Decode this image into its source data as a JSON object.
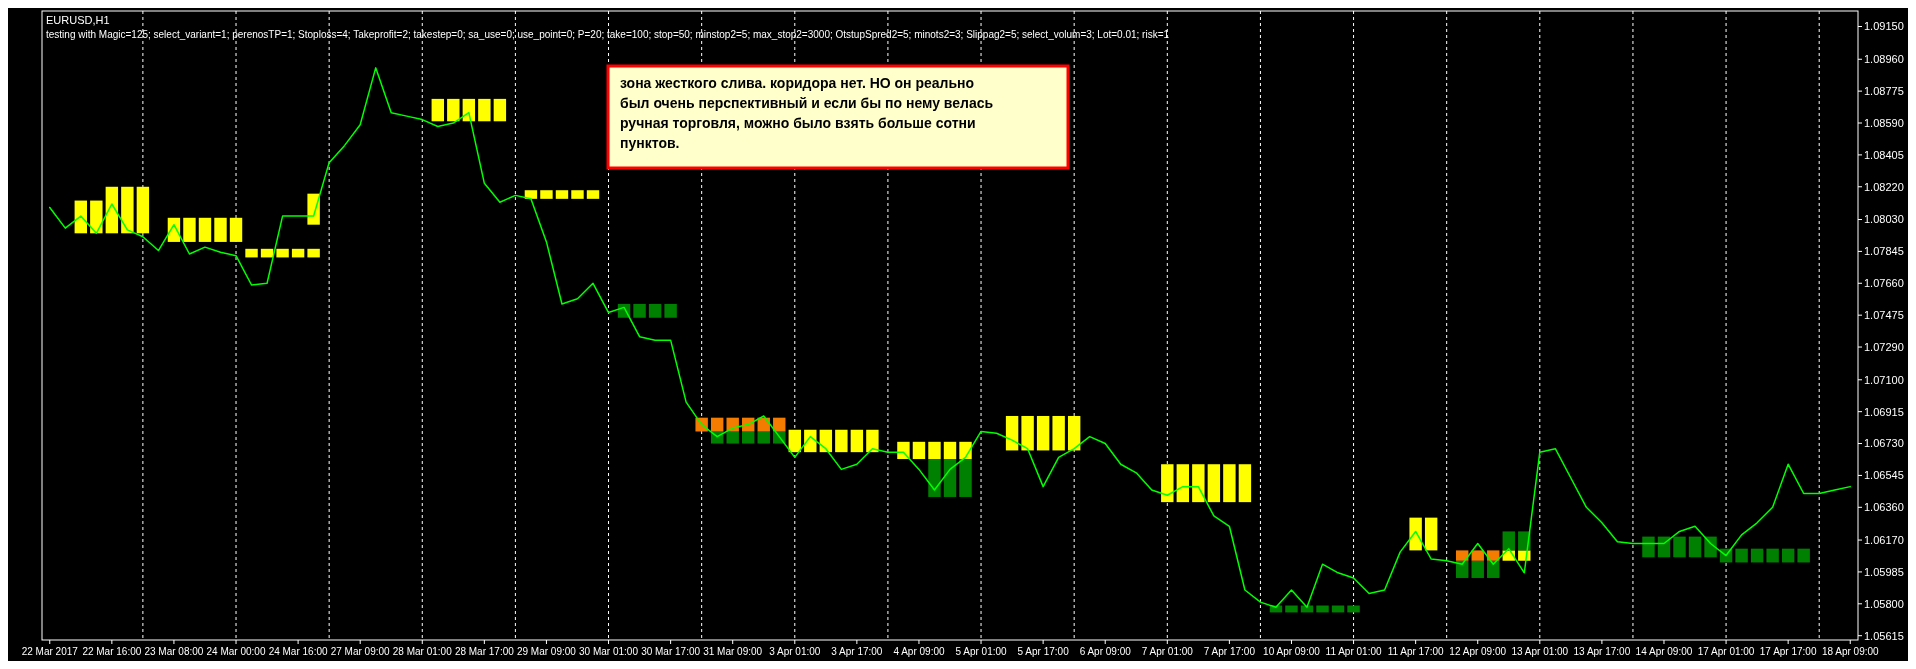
{
  "chart_data": {
    "type": "line",
    "title": "EURUSD,H1",
    "subtitle": "testing with Magic=125; select_variant=1; perenosTP=1; Stoploss=4; Takeprofit=2; takestep=0; sa_use=0; use_point=0; P=20; take=100; stop=50; minstop2=5; max_stop2=3000; OtstupSpred2=5; minots2=3; Slippag2=5; select_volum=3; Lot=0.01; risk=1",
    "annotations": [
      "зона жесткого слива. коридора нет. НО он реально был очень перспективный и если бы по нему велась ручная торговля, можно было взять больше сотни пунктов."
    ],
    "categories": [
      "22 Mar 2017",
      null,
      null,
      null,
      "22 Mar 16:00",
      null,
      null,
      null,
      "23 Mar 08:00",
      null,
      null,
      null,
      "24 Mar 00:00",
      null,
      null,
      null,
      "24 Mar 16:00",
      null,
      null,
      null,
      "27 Mar 09:00",
      null,
      null,
      null,
      "28 Mar 01:00",
      null,
      null,
      null,
      "28 Mar 17:00",
      null,
      null,
      null,
      "29 Mar 09:00",
      null,
      null,
      null,
      "30 Mar 01:00",
      null,
      null,
      null,
      "30 Mar 17:00",
      null,
      null,
      null,
      "31 Mar 09:00",
      null,
      null,
      null,
      "3 Apr 01:00",
      null,
      null,
      null,
      "3 Apr 17:00",
      null,
      null,
      null,
      "4 Apr 09:00",
      null,
      null,
      null,
      "5 Apr 01:00",
      null,
      null,
      null,
      "5 Apr 17:00",
      null,
      null,
      null,
      "6 Apr 09:00",
      null,
      null,
      null,
      "7 Apr 01:00",
      null,
      null,
      null,
      "7 Apr 17:00",
      null,
      null,
      null,
      "10 Apr 09:00",
      null,
      null,
      null,
      "11 Apr 01:00",
      null,
      null,
      null,
      "11 Apr 17:00",
      null,
      null,
      null,
      "12 Apr 09:00",
      null,
      null,
      null,
      "13 Apr 01:00",
      null,
      null,
      null,
      "13 Apr 17:00",
      null,
      null,
      null,
      "14 Apr 09:00",
      null,
      null,
      null,
      "17 Apr 01:00",
      null,
      null,
      null,
      "17 Apr 17:00",
      null,
      null,
      null,
      "18 Apr 09:00"
    ],
    "ylim": [
      1.0559,
      1.0924
    ],
    "grid": "x",
    "yticks": [
      {
        "value": 1.0915,
        "label": "1.09150"
      },
      {
        "value": 1.0896,
        "label": "1.08960"
      },
      {
        "value": 1.08775,
        "label": "1.08775"
      },
      {
        "value": 1.0859,
        "label": "1.08590"
      },
      {
        "value": 1.08405,
        "label": "1.08405"
      },
      {
        "value": 1.0822,
        "label": "1.08220"
      },
      {
        "value": 1.0803,
        "label": "1.08030"
      },
      {
        "value": 1.07845,
        "label": "1.07845"
      },
      {
        "value": 1.0766,
        "label": "1.07660"
      },
      {
        "value": 1.07475,
        "label": "1.07475"
      },
      {
        "value": 1.0729,
        "label": "1.07290"
      },
      {
        "value": 1.071,
        "label": "1.07100"
      },
      {
        "value": 1.06915,
        "label": "1.06915"
      },
      {
        "value": 1.0673,
        "label": "1.06730"
      },
      {
        "value": 1.06545,
        "label": "1.06545"
      },
      {
        "value": 1.0636,
        "label": "1.06360"
      },
      {
        "value": 1.0617,
        "label": "1.06170"
      },
      {
        "value": 1.05985,
        "label": "1.05985"
      },
      {
        "value": 1.058,
        "label": "1.05800"
      },
      {
        "value": 1.05615,
        "label": "1.05615"
      }
    ],
    "series": [
      {
        "type": "bar",
        "color": "#ffff00",
        "base": [
          null,
          null,
          1.0795,
          1.0795,
          1.0795,
          1.0795,
          1.0795,
          null,
          1.079,
          1.079,
          1.079,
          1.079,
          1.079,
          1.0781,
          1.0781,
          1.0781,
          1.0781,
          1.0781,
          null,
          null,
          null,
          null,
          null,
          null,
          null,
          1.086,
          1.086,
          1.086,
          1.086,
          1.086,
          null,
          1.0815,
          1.0815,
          1.0815,
          1.0815,
          1.0815,
          null,
          null,
          null,
          null,
          null,
          null,
          null,
          null,
          null,
          null,
          null,
          null,
          1.0668,
          1.0668,
          1.0668,
          1.0668,
          1.0668,
          1.0668,
          null,
          1.0664,
          1.0664,
          1.0664,
          1.0664,
          1.0664,
          null,
          null,
          1.0669,
          1.0669,
          1.0669,
          1.0669,
          1.0669,
          null,
          null,
          null,
          null,
          null,
          1.0639,
          1.0639,
          1.0639,
          1.0639,
          1.0639,
          1.0639,
          null,
          null,
          null,
          null,
          null,
          null,
          null,
          null,
          null,
          null,
          1.0611,
          1.0611,
          null,
          null,
          null,
          null,
          1.0605,
          1.0605,
          null,
          null,
          null,
          null,
          null,
          null,
          null,
          null,
          null,
          null,
          null,
          null,
          null,
          null,
          null,
          null,
          null,
          null,
          null,
          null,
          null
        ],
        "values": [
          null,
          null,
          0.0019,
          0.0019,
          0.0027,
          0.0027,
          0.0027,
          null,
          0.0014,
          0.0014,
          0.0014,
          0.0014,
          0.0014,
          0.0005,
          0.0005,
          0.0005,
          0.0005,
          0.0005,
          null,
          null,
          null,
          null,
          null,
          null,
          null,
          0.0013,
          0.0013,
          0.0013,
          0.0013,
          0.0013,
          null,
          0.0005,
          0.0005,
          0.0005,
          0.0005,
          0.0005,
          null,
          null,
          null,
          null,
          null,
          null,
          null,
          null,
          null,
          null,
          null,
          null,
          0.0013,
          0.0013,
          0.0013,
          0.0013,
          0.0013,
          0.0013,
          null,
          0.001,
          0.001,
          0.001,
          0.001,
          0.001,
          null,
          null,
          0.002,
          0.002,
          0.002,
          0.002,
          0.002,
          null,
          null,
          null,
          null,
          null,
          0.0022,
          0.0022,
          0.0022,
          0.0022,
          0.0022,
          0.0022,
          null,
          null,
          null,
          null,
          null,
          null,
          null,
          null,
          null,
          null,
          0.0019,
          0.0019,
          null,
          null,
          null,
          null,
          0.0006,
          0.0006,
          null,
          null,
          null,
          null,
          null,
          null,
          null,
          null,
          null,
          null,
          null,
          null,
          null,
          null,
          null,
          null,
          null,
          null,
          null,
          null,
          null
        ]
      },
      {
        "type": "bar",
        "color": "#ffff00",
        "base": [
          null,
          null,
          null,
          null,
          null,
          null,
          null,
          null,
          null,
          null,
          null,
          null,
          null,
          null,
          null,
          null,
          null,
          1.08,
          null,
          null,
          null,
          null,
          null,
          null,
          null,
          null,
          null,
          null,
          null,
          null,
          null,
          null,
          null,
          null,
          null,
          null,
          null,
          null,
          null,
          null,
          null,
          null,
          null,
          null,
          null,
          null,
          null,
          null,
          null,
          null,
          null,
          null,
          null,
          null,
          null,
          null,
          null,
          null,
          null,
          null,
          null,
          null,
          null,
          null,
          null,
          null,
          null,
          null,
          null,
          null,
          null,
          null,
          null,
          null,
          null,
          null,
          null,
          null,
          null,
          null,
          null,
          null,
          null,
          null,
          null,
          null,
          null,
          null,
          null,
          null,
          null,
          null,
          null,
          null,
          null,
          null,
          null,
          null,
          null,
          null,
          null,
          null,
          null,
          null,
          null,
          null,
          null,
          null,
          null,
          null,
          null,
          null,
          null,
          null,
          null,
          null,
          null
        ],
        "values": [
          null,
          null,
          null,
          null,
          null,
          null,
          null,
          null,
          null,
          null,
          null,
          null,
          null,
          null,
          null,
          null,
          null,
          0.0018,
          null,
          null,
          null,
          null,
          null,
          null,
          null,
          null,
          null,
          null,
          null,
          null,
          null,
          null,
          null,
          null,
          null,
          null,
          null,
          null,
          null,
          null,
          null,
          null,
          null,
          null,
          null,
          null,
          null,
          null,
          null,
          null,
          null,
          null,
          null,
          null,
          null,
          null,
          null,
          null,
          null,
          null,
          null,
          null,
          null,
          null,
          null,
          null,
          null,
          null,
          null,
          null,
          null,
          null,
          null,
          null,
          null,
          null,
          null,
          null,
          null,
          null,
          null,
          null,
          null,
          null,
          null,
          null,
          null,
          null,
          null,
          null,
          null,
          null,
          null,
          null,
          null,
          null,
          null,
          null,
          null,
          null,
          null,
          null,
          null,
          null,
          null,
          null,
          null,
          null,
          null,
          null,
          null,
          null,
          null,
          null,
          null,
          null,
          null
        ]
      },
      {
        "type": "bar",
        "color": "#008000",
        "base": [
          null,
          null,
          null,
          null,
          null,
          null,
          null,
          null,
          null,
          null,
          null,
          null,
          null,
          null,
          null,
          null,
          null,
          null,
          null,
          null,
          null,
          null,
          null,
          null,
          null,
          null,
          null,
          null,
          null,
          null,
          null,
          null,
          null,
          null,
          null,
          null,
          null,
          1.0746,
          1.0746,
          1.0746,
          1.0746,
          null,
          null,
          1.0673,
          1.0673,
          1.0673,
          1.0673,
          1.0673,
          null,
          null,
          null,
          null,
          null,
          null,
          null,
          null,
          null,
          1.0642,
          1.0642,
          1.0642,
          null,
          null,
          null,
          null,
          null,
          null,
          null,
          null,
          null,
          null,
          null,
          null,
          null,
          null,
          null,
          null,
          null,
          null,
          null,
          1.0575,
          1.0575,
          1.0575,
          1.0575,
          1.0575,
          1.0575,
          null,
          null,
          null,
          null,
          null,
          null,
          1.0595,
          1.0595,
          1.0595,
          1.0611,
          1.0611,
          null,
          null,
          null,
          null,
          null,
          null,
          null,
          1.0607,
          1.0607,
          1.0607,
          1.0607,
          1.0607,
          1.0604,
          1.0604,
          1.0604,
          1.0604,
          1.0604,
          1.0604,
          null,
          null,
          null
        ],
        "values": [
          null,
          null,
          null,
          null,
          null,
          null,
          null,
          null,
          null,
          null,
          null,
          null,
          null,
          null,
          null,
          null,
          null,
          null,
          null,
          null,
          null,
          null,
          null,
          null,
          null,
          null,
          null,
          null,
          null,
          null,
          null,
          null,
          null,
          null,
          null,
          null,
          null,
          0.0008,
          0.0008,
          0.0008,
          0.0008,
          null,
          null,
          0.0007,
          0.0007,
          0.0007,
          0.0007,
          0.0007,
          null,
          null,
          null,
          null,
          null,
          null,
          null,
          null,
          null,
          0.0022,
          0.0022,
          0.0022,
          null,
          null,
          null,
          null,
          null,
          null,
          null,
          null,
          null,
          null,
          null,
          null,
          null,
          null,
          null,
          null,
          null,
          null,
          null,
          0.0004,
          0.0004,
          0.0004,
          0.0004,
          0.0004,
          0.0004,
          null,
          null,
          null,
          null,
          null,
          null,
          0.001,
          0.001,
          0.001,
          0.0011,
          0.0011,
          null,
          null,
          null,
          null,
          null,
          null,
          null,
          0.0012,
          0.0012,
          0.0012,
          0.0012,
          0.0012,
          0.0008,
          0.0008,
          0.0008,
          0.0008,
          0.0008,
          0.0008,
          null,
          null,
          null
        ]
      },
      {
        "type": "bar",
        "color": "#f47c00",
        "base": [
          null,
          null,
          null,
          null,
          null,
          null,
          null,
          null,
          null,
          null,
          null,
          null,
          null,
          null,
          null,
          null,
          null,
          null,
          null,
          null,
          null,
          null,
          null,
          null,
          null,
          null,
          null,
          null,
          null,
          null,
          null,
          null,
          null,
          null,
          null,
          null,
          null,
          null,
          null,
          null,
          null,
          null,
          1.068,
          1.068,
          1.068,
          1.068,
          1.068,
          1.068,
          null,
          null,
          null,
          null,
          null,
          null,
          null,
          null,
          null,
          null,
          null,
          null,
          null,
          null,
          null,
          null,
          null,
          null,
          null,
          null,
          null,
          null,
          null,
          null,
          null,
          null,
          null,
          null,
          null,
          null,
          null,
          null,
          null,
          null,
          null,
          null,
          null,
          null,
          null,
          null,
          null,
          null,
          null,
          1.0605,
          1.0605,
          1.0605,
          null,
          null,
          null,
          null,
          null,
          null,
          null,
          null,
          null,
          null,
          null,
          null,
          null,
          null,
          null,
          null,
          null,
          null,
          null,
          null,
          null,
          null,
          null
        ],
        "values": [
          null,
          null,
          null,
          null,
          null,
          null,
          null,
          null,
          null,
          null,
          null,
          null,
          null,
          null,
          null,
          null,
          null,
          null,
          null,
          null,
          null,
          null,
          null,
          null,
          null,
          null,
          null,
          null,
          null,
          null,
          null,
          null,
          null,
          null,
          null,
          null,
          null,
          null,
          null,
          null,
          null,
          null,
          0.0008,
          0.0008,
          0.0008,
          0.0008,
          0.0008,
          0.0008,
          null,
          null,
          null,
          null,
          null,
          null,
          null,
          null,
          null,
          null,
          null,
          null,
          null,
          null,
          null,
          null,
          null,
          null,
          null,
          null,
          null,
          null,
          null,
          null,
          null,
          null,
          null,
          null,
          null,
          null,
          null,
          null,
          null,
          null,
          null,
          null,
          null,
          null,
          null,
          null,
          null,
          null,
          null,
          0.0006,
          0.0006,
          0.0006,
          null,
          null,
          null,
          null,
          null,
          null,
          null,
          null,
          null,
          null,
          null,
          null,
          null,
          null,
          null,
          null,
          null,
          null,
          null,
          null,
          null,
          null,
          null
        ]
      },
      {
        "color": "#00ff00",
        "values": [
          1.081,
          1.0798,
          1.0805,
          1.0795,
          1.0812,
          1.0797,
          1.0793,
          1.0785,
          1.08,
          1.0783,
          1.0787,
          1.0784,
          1.0782,
          1.0765,
          1.0766,
          1.0805,
          1.0805,
          1.0805,
          1.0836,
          1.0846,
          1.0858,
          1.0891,
          1.0865,
          1.0863,
          1.0861,
          1.0857,
          1.0859,
          1.0865,
          1.0824,
          1.0813,
          1.0817,
          1.0815,
          1.079,
          1.0754,
          1.0757,
          1.0766,
          1.0749,
          1.0752,
          1.0735,
          1.0733,
          1.0733,
          1.0697,
          1.0684,
          1.0677,
          1.0682,
          1.0684,
          1.0689,
          1.0677,
          1.0665,
          1.0677,
          1.067,
          1.0658,
          1.0661,
          1.067,
          1.0668,
          1.0668,
          1.0658,
          1.0646,
          1.0658,
          1.0665,
          1.068,
          1.0679,
          1.0675,
          1.067,
          1.0648,
          1.0665,
          1.067,
          1.0677,
          1.0673,
          1.0661,
          1.0656,
          1.0646,
          1.0643,
          1.0648,
          1.0648,
          1.0631,
          1.0625,
          1.0588,
          1.0581,
          1.0578,
          1.0588,
          1.0578,
          1.0603,
          1.0598,
          1.0595,
          1.0586,
          1.0588,
          1.061,
          1.0622,
          1.0606,
          1.0605,
          1.0603,
          1.0615,
          1.0603,
          1.0612,
          1.0598,
          1.0668,
          1.067,
          1.0653,
          1.0636,
          1.0627,
          1.0616,
          1.0615,
          1.0615,
          1.0615,
          1.0622,
          1.0625,
          1.0615,
          1.0608,
          1.062,
          1.0627,
          1.0636,
          1.0661,
          1.0644,
          1.0644,
          1.0646,
          1.0648
        ]
      }
    ]
  }
}
